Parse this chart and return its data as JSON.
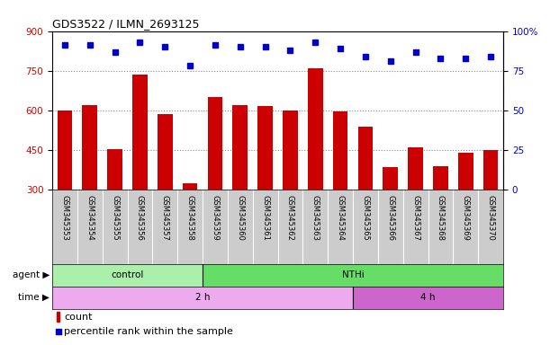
{
  "title": "GDS3522 / ILMN_2693125",
  "samples": [
    "GSM345353",
    "GSM345354",
    "GSM345355",
    "GSM345356",
    "GSM345357",
    "GSM345358",
    "GSM345359",
    "GSM345360",
    "GSM345361",
    "GSM345362",
    "GSM345363",
    "GSM345364",
    "GSM345365",
    "GSM345366",
    "GSM345367",
    "GSM345368",
    "GSM345369",
    "GSM345370"
  ],
  "counts": [
    600,
    620,
    455,
    735,
    585,
    325,
    650,
    620,
    618,
    600,
    760,
    595,
    540,
    385,
    460,
    390,
    440,
    450
  ],
  "percentiles": [
    91,
    91,
    87,
    93,
    90,
    78,
    91,
    90,
    90,
    88,
    93,
    89,
    84,
    81,
    87,
    83,
    83,
    84
  ],
  "ylim_left": [
    300,
    900
  ],
  "ylim_right": [
    0,
    100
  ],
  "yticks_left": [
    300,
    450,
    600,
    750,
    900
  ],
  "yticks_right": [
    0,
    25,
    50,
    75,
    100
  ],
  "bar_color": "#cc0000",
  "dot_color": "#0000cc",
  "agent_groups": [
    {
      "label": "control",
      "start": 0,
      "end": 6,
      "color": "#aaf0aa"
    },
    {
      "label": "NTHi",
      "start": 6,
      "end": 18,
      "color": "#66dd66"
    }
  ],
  "time_groups": [
    {
      "label": "2 h",
      "start": 0,
      "end": 12,
      "color": "#eeaaee"
    },
    {
      "label": "4 h",
      "start": 12,
      "end": 18,
      "color": "#cc66cc"
    }
  ],
  "agent_label": "agent",
  "time_label": "time",
  "legend_count_label": "count",
  "legend_pct_label": "percentile rank within the sample",
  "grid_color": "#888888",
  "tick_bg_color": "#cccccc",
  "plot_bg": "#ffffff"
}
